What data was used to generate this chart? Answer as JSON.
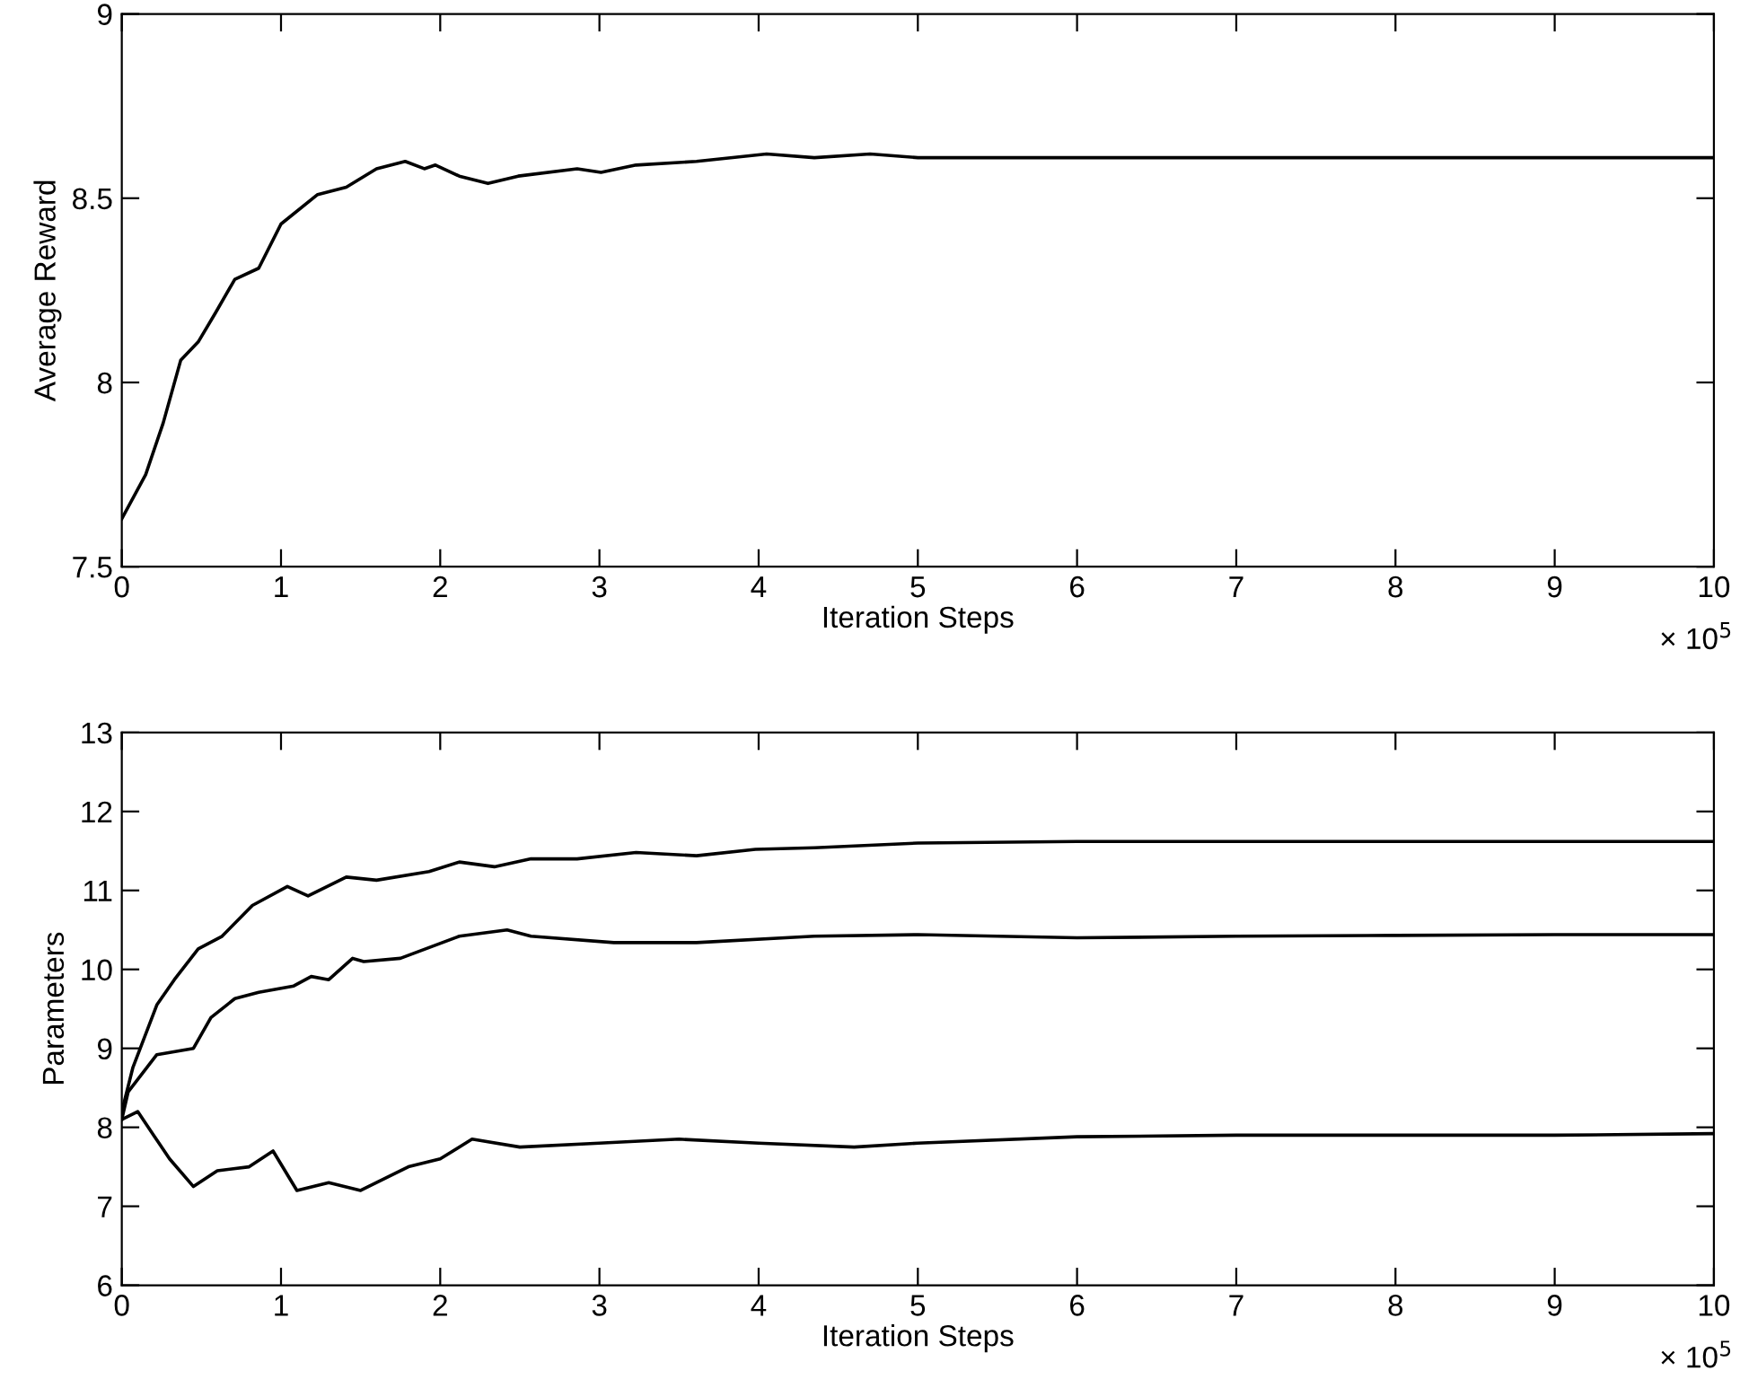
{
  "chart_data": [
    {
      "type": "line",
      "xlabel": "Iteration Steps",
      "ylabel": "Average Reward",
      "annotations": [
        "× 10$^{5}$"
      ],
      "xlim": [
        0,
        10
      ],
      "ylim": [
        7.5,
        9
      ],
      "xticks": [
        0,
        1,
        2,
        3,
        4,
        5,
        6,
        7,
        8,
        9,
        10
      ],
      "yticks": [
        7.5,
        8,
        8.5,
        9
      ],
      "grid": false,
      "legend": false,
      "line_style": "solid",
      "series": [
        {
          "color": "#000000",
          "x": [
            0,
            0.15,
            0.26,
            0.37,
            0.48,
            0.59,
            0.71,
            0.86,
            1.0,
            1.23,
            1.41,
            1.6,
            1.78,
            1.9,
            1.97,
            2.12,
            2.3,
            2.49,
            2.86,
            3.01,
            3.23,
            3.61,
            4.05,
            4.35,
            4.7,
            5,
            6,
            7,
            8,
            9,
            10
          ],
          "values": [
            7.63,
            7.75,
            7.89,
            8.06,
            8.11,
            8.19,
            8.28,
            8.31,
            8.43,
            8.51,
            8.53,
            8.58,
            8.6,
            8.58,
            8.59,
            8.56,
            8.54,
            8.56,
            8.58,
            8.57,
            8.59,
            8.6,
            8.62,
            8.61,
            8.62,
            8.61,
            8.61,
            8.61,
            8.61,
            8.61,
            8.61
          ]
        }
      ]
    },
    {
      "type": "line",
      "xlabel": "Iteration Steps",
      "ylabel": "Parameters",
      "annotations": [
        "× 10$^{5}$"
      ],
      "xlim": [
        0,
        10
      ],
      "ylim": [
        6,
        13
      ],
      "xticks": [
        0,
        1,
        2,
        3,
        4,
        5,
        6,
        7,
        8,
        9,
        10
      ],
      "yticks": [
        6,
        7,
        8,
        9,
        10,
        11,
        12,
        13
      ],
      "grid": false,
      "legend": false,
      "line_style": "solid",
      "series": [
        {
          "color": "#000000",
          "x": [
            0,
            0.07,
            0.22,
            0.33,
            0.48,
            0.63,
            0.82,
            1.04,
            1.17,
            1.41,
            1.6,
            1.93,
            2.12,
            2.34,
            2.57,
            2.86,
            3.23,
            3.61,
            3.98,
            4.35,
            5,
            6,
            7,
            8,
            9,
            10
          ],
          "values": [
            8.2,
            8.76,
            9.55,
            9.87,
            10.26,
            10.42,
            10.81,
            11.05,
            10.93,
            11.17,
            11.13,
            11.24,
            11.36,
            11.3,
            11.4,
            11.4,
            11.48,
            11.44,
            11.52,
            11.54,
            11.6,
            11.62,
            11.62,
            11.62,
            11.62,
            11.62
          ]
        },
        {
          "color": "#000000",
          "x": [
            0,
            0.04,
            0.22,
            0.45,
            0.56,
            0.71,
            0.86,
            1.08,
            1.19,
            1.3,
            1.45,
            1.52,
            1.75,
            2.12,
            2.42,
            2.57,
            3.09,
            3.61,
            4.35,
            5,
            6,
            7,
            8,
            9,
            10
          ],
          "values": [
            8.1,
            8.45,
            8.92,
            9.0,
            9.39,
            9.63,
            9.71,
            9.79,
            9.91,
            9.87,
            10.14,
            10.1,
            10.14,
            10.42,
            10.5,
            10.42,
            10.34,
            10.34,
            10.42,
            10.44,
            10.4,
            10.42,
            10.43,
            10.44,
            10.44
          ]
        },
        {
          "color": "#000000",
          "x": [
            0,
            0.1,
            0.2,
            0.3,
            0.45,
            0.6,
            0.8,
            0.95,
            1.1,
            1.3,
            1.5,
            1.8,
            2.0,
            2.2,
            2.5,
            3.0,
            3.5,
            4.0,
            4.6,
            5.0,
            6.0,
            7.0,
            8.0,
            9.0,
            10.0
          ],
          "values": [
            8.1,
            8.2,
            7.9,
            7.6,
            7.25,
            7.45,
            7.5,
            7.7,
            7.2,
            7.3,
            7.2,
            7.5,
            7.6,
            7.85,
            7.75,
            7.8,
            7.85,
            7.8,
            7.75,
            7.8,
            7.88,
            7.9,
            7.9,
            7.9,
            7.92
          ]
        }
      ]
    }
  ]
}
